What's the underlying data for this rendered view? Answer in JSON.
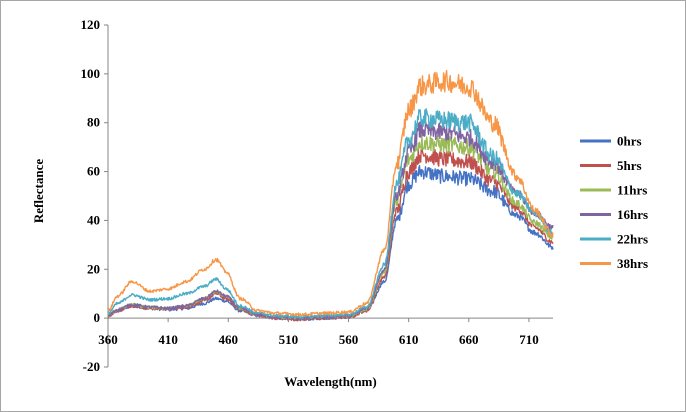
{
  "chart_data": {
    "type": "line",
    "xlabel": "Wavelength(nm)",
    "ylabel": "Reflectance",
    "xlim": [
      360,
      730
    ],
    "ylim": [
      -20,
      120
    ],
    "xticks": [
      360,
      410,
      460,
      510,
      560,
      610,
      660,
      710
    ],
    "yticks": [
      -20,
      0,
      20,
      40,
      60,
      80,
      100,
      120
    ],
    "grid": false,
    "legend_position": "right",
    "series": [
      {
        "name": "0hrs",
        "color": "#4472c4",
        "x": [
          360,
          368,
          380,
          395,
          410,
          425,
          440,
          450,
          458,
          470,
          485,
          500,
          520,
          540,
          560,
          575,
          590,
          600,
          610,
          620,
          640,
          660,
          680,
          700,
          715,
          730
        ],
        "y": [
          1,
          3,
          5,
          4,
          3.5,
          4,
          6,
          8,
          7,
          3,
          1,
          0,
          -0.5,
          0,
          0.5,
          3,
          15,
          40,
          55,
          60,
          58,
          57,
          52,
          42,
          35,
          29
        ]
      },
      {
        "name": "5hrs",
        "color": "#c0504d",
        "x": [
          360,
          368,
          380,
          395,
          410,
          425,
          440,
          450,
          458,
          470,
          485,
          500,
          520,
          540,
          560,
          575,
          590,
          600,
          610,
          620,
          640,
          660,
          680,
          700,
          715,
          730
        ],
        "y": [
          1,
          3,
          5,
          4,
          3.8,
          4.5,
          7,
          10,
          8,
          3.5,
          1,
          0,
          -0.5,
          0,
          0.5,
          3,
          17,
          44,
          60,
          67,
          65,
          64,
          56,
          45,
          37,
          31
        ]
      },
      {
        "name": "11hrs",
        "color": "#9bbb59",
        "x": [
          360,
          368,
          380,
          395,
          410,
          425,
          440,
          450,
          458,
          470,
          485,
          500,
          520,
          540,
          560,
          575,
          590,
          600,
          610,
          620,
          640,
          660,
          680,
          700,
          715,
          730
        ],
        "y": [
          1,
          3.5,
          5.5,
          4.5,
          4,
          5,
          8,
          11,
          9,
          4,
          1.5,
          0.5,
          0,
          0.5,
          1,
          3.5,
          19,
          48,
          65,
          72,
          71,
          70,
          60,
          47,
          39,
          33
        ]
      },
      {
        "name": "16hrs",
        "color": "#8064a2",
        "x": [
          360,
          368,
          380,
          395,
          410,
          425,
          440,
          450,
          458,
          470,
          485,
          500,
          520,
          540,
          560,
          575,
          590,
          600,
          610,
          620,
          640,
          660,
          680,
          700,
          715,
          730
        ],
        "y": [
          1,
          3.5,
          5.5,
          4.5,
          4,
          5,
          8,
          11,
          9,
          4,
          1.5,
          0.5,
          0,
          0.5,
          1,
          4,
          20,
          50,
          68,
          77,
          76,
          74,
          64,
          51,
          43,
          37
        ]
      },
      {
        "name": "22hrs",
        "color": "#4bacc6",
        "x": [
          360,
          368,
          380,
          395,
          410,
          425,
          440,
          450,
          458,
          470,
          485,
          500,
          520,
          540,
          560,
          575,
          590,
          600,
          610,
          620,
          640,
          660,
          680,
          700,
          715,
          730
        ],
        "y": [
          2,
          6,
          9.5,
          7.5,
          8,
          10,
          13,
          16,
          12,
          5,
          2,
          1,
          0.5,
          1,
          1.5,
          4.5,
          22,
          55,
          73,
          82,
          81,
          80,
          66,
          51,
          43,
          35
        ]
      },
      {
        "name": "38hrs",
        "color": "#f79646",
        "x": [
          360,
          368,
          380,
          395,
          410,
          425,
          440,
          450,
          458,
          470,
          485,
          500,
          520,
          540,
          560,
          575,
          590,
          600,
          610,
          620,
          640,
          660,
          680,
          700,
          715,
          730
        ],
        "y": [
          3,
          9,
          15,
          11,
          12,
          15,
          20,
          24,
          19,
          8,
          3,
          2,
          1.5,
          2,
          2.5,
          6,
          28,
          63,
          85,
          95,
          97,
          95,
          80,
          58,
          44,
          34
        ]
      }
    ]
  }
}
